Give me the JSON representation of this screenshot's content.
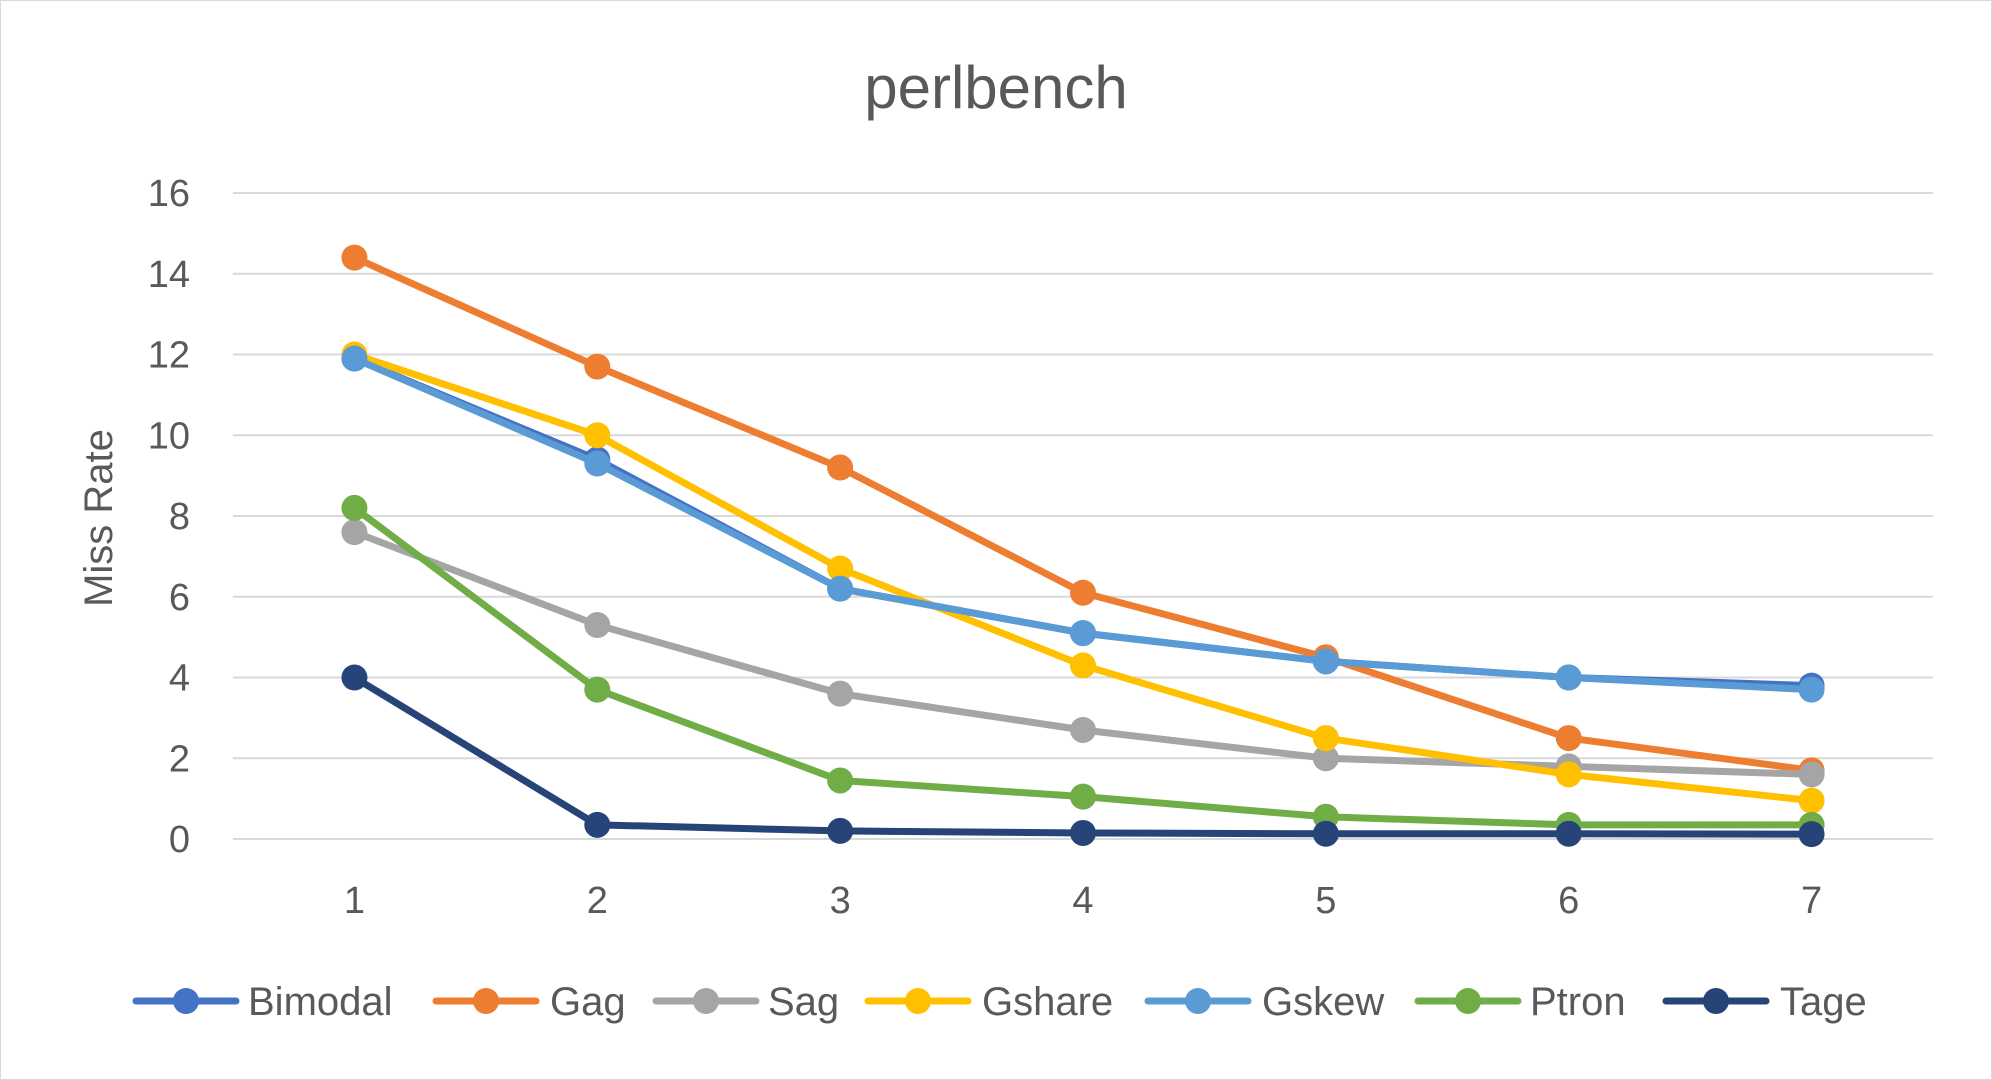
{
  "chart_data": {
    "type": "line",
    "title": "perlbench",
    "xlabel": "",
    "ylabel": "Miss Rate",
    "categories": [
      "1",
      "2",
      "3",
      "4",
      "5",
      "6",
      "7"
    ],
    "ylim": [
      0,
      16
    ],
    "yticks": [
      0,
      2,
      4,
      6,
      8,
      10,
      12,
      14,
      16
    ],
    "grid": true,
    "legend_position": "bottom",
    "series": [
      {
        "name": "Bimodal",
        "color": "#4472C4",
        "values": [
          11.9,
          9.4,
          6.2,
          5.1,
          4.4,
          4.0,
          3.8
        ]
      },
      {
        "name": "Gag",
        "color": "#ED7D31",
        "values": [
          14.4,
          11.7,
          9.2,
          6.1,
          4.5,
          2.5,
          1.7
        ]
      },
      {
        "name": "Sag",
        "color": "#A5A5A5",
        "values": [
          7.6,
          5.3,
          3.6,
          2.7,
          2.0,
          1.8,
          1.6
        ]
      },
      {
        "name": "Gshare",
        "color": "#FFC000",
        "values": [
          12.0,
          10.0,
          6.7,
          4.3,
          2.5,
          1.6,
          0.95
        ]
      },
      {
        "name": "Gskew",
        "color": "#5B9BD5",
        "values": [
          11.9,
          9.3,
          6.2,
          5.1,
          4.4,
          4.0,
          3.7
        ]
      },
      {
        "name": "Ptron",
        "color": "#70AD47",
        "values": [
          8.2,
          3.7,
          1.45,
          1.05,
          0.55,
          0.35,
          0.35
        ]
      },
      {
        "name": "Tage",
        "color": "#264478",
        "values": [
          4.0,
          0.35,
          0.2,
          0.15,
          0.13,
          0.13,
          0.12
        ]
      }
    ]
  }
}
